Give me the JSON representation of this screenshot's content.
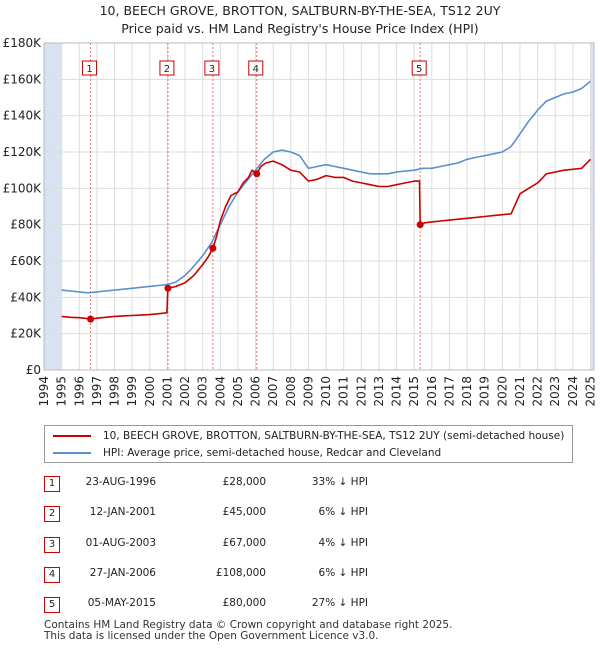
{
  "chart_data": {
    "type": "line",
    "title": "10, BEECH GROVE, BROTTON, SALTBURN-BY-THE-SEA, TS12 2UY",
    "subtitle": "Price paid vs. HM Land Registry's House Price Index (HPI)",
    "xlabel": "",
    "ylabel": "",
    "xlim": [
      1994,
      2025.2
    ],
    "ylim": [
      0,
      180000
    ],
    "yticks": [
      0,
      20000,
      40000,
      60000,
      80000,
      100000,
      120000,
      140000,
      160000,
      180000
    ],
    "ytick_labels": [
      "£0",
      "£20K",
      "£40K",
      "£60K",
      "£80K",
      "£100K",
      "£120K",
      "£140K",
      "£160K",
      "£180K"
    ],
    "xticks": [
      1994,
      1995,
      1996,
      1997,
      1998,
      1999,
      2000,
      2001,
      2002,
      2003,
      2004,
      2005,
      2006,
      2007,
      2008,
      2009,
      2010,
      2011,
      2012,
      2013,
      2014,
      2015,
      2016,
      2017,
      2018,
      2019,
      2020,
      2021,
      2022,
      2023,
      2024,
      2025
    ],
    "colors": {
      "property": "#cc0000",
      "hpi": "#5b8fd0",
      "marker_line": "#e57373",
      "future_shade": "#d8e2f0"
    },
    "series": [
      {
        "name": "10, BEECH GROVE, BROTTON, SALTBURN-BY-THE-SEA, TS12 2UY (semi-detached house)",
        "role": "property",
        "x": [
          1995.0,
          1995.5,
          1996.0,
          1996.3,
          1996.64,
          1997.0,
          1997.5,
          1998.0,
          1998.5,
          1999.0,
          1999.5,
          2000.0,
          2000.5,
          2000.97,
          2001.03,
          2001.5,
          2002.0,
          2002.5,
          2003.0,
          2003.3,
          2003.58,
          2003.8,
          2004.0,
          2004.3,
          2004.6,
          2005.0,
          2005.3,
          2005.6,
          2005.8,
          2006.07,
          2006.3,
          2006.6,
          2007.0,
          2007.5,
          2008.0,
          2008.5,
          2009.0,
          2009.5,
          2010.0,
          2010.5,
          2011.0,
          2011.5,
          2012.0,
          2012.5,
          2013.0,
          2013.5,
          2014.0,
          2014.5,
          2015.0,
          2015.3,
          2015.34,
          2015.6,
          2016.0,
          2016.5,
          2017.0,
          2017.5,
          2018.0,
          2018.5,
          2019.0,
          2019.5,
          2020.0,
          2020.5,
          2021.0,
          2021.5,
          2022.0,
          2022.5,
          2023.0,
          2023.5,
          2024.0,
          2024.5,
          2025.0
        ],
        "values": [
          29500,
          29000,
          28800,
          28500,
          28000,
          28500,
          29000,
          29500,
          29800,
          30000,
          30200,
          30500,
          31000,
          31500,
          45000,
          46000,
          48000,
          52000,
          58000,
          62000,
          67000,
          74000,
          82000,
          90000,
          96000,
          98000,
          103000,
          106000,
          110000,
          108000,
          112000,
          114000,
          115000,
          113000,
          110000,
          109000,
          104000,
          105000,
          107000,
          106000,
          106000,
          104000,
          103000,
          102000,
          101000,
          101000,
          102000,
          103000,
          104000,
          104000,
          80000,
          81000,
          81500,
          82000,
          82500,
          83000,
          83500,
          84000,
          84500,
          85000,
          85500,
          86000,
          97000,
          100000,
          103000,
          108000,
          109000,
          110000,
          110500,
          111000,
          116000
        ]
      },
      {
        "name": "HPI: Average price, semi-detached house, Redcar and Cleveland",
        "role": "hpi",
        "x": [
          1995.0,
          1995.5,
          1996.0,
          1996.5,
          1997.0,
          1997.5,
          1998.0,
          1998.5,
          1999.0,
          1999.5,
          2000.0,
          2000.5,
          2001.0,
          2001.5,
          2002.0,
          2002.5,
          2003.0,
          2003.5,
          2004.0,
          2004.5,
          2005.0,
          2005.5,
          2006.0,
          2006.5,
          2007.0,
          2007.5,
          2008.0,
          2008.5,
          2009.0,
          2009.5,
          2010.0,
          2010.5,
          2011.0,
          2011.5,
          2012.0,
          2012.5,
          2013.0,
          2013.5,
          2014.0,
          2014.5,
          2015.0,
          2015.5,
          2016.0,
          2016.5,
          2017.0,
          2017.5,
          2018.0,
          2018.5,
          2019.0,
          2019.5,
          2020.0,
          2020.5,
          2021.0,
          2021.5,
          2022.0,
          2022.5,
          2023.0,
          2023.5,
          2024.0,
          2024.5,
          2025.0
        ],
        "values": [
          44000,
          43500,
          43000,
          42500,
          43000,
          43500,
          44000,
          44500,
          45000,
          45500,
          46000,
          46500,
          47000,
          48500,
          52000,
          57000,
          63000,
          70000,
          80000,
          90000,
          98000,
          104000,
          110000,
          116000,
          120000,
          121000,
          120000,
          118000,
          111000,
          112000,
          113000,
          112000,
          111000,
          110000,
          109000,
          108000,
          108000,
          108000,
          109000,
          109500,
          110000,
          111000,
          111000,
          112000,
          113000,
          114000,
          116000,
          117000,
          118000,
          119000,
          120000,
          123000,
          130000,
          137000,
          143000,
          148000,
          150000,
          152000,
          153000,
          155000,
          159000
        ]
      }
    ],
    "sales": [
      {
        "label": "1",
        "date": "23-AUG-1996",
        "x": 1996.64,
        "price": 28000
      },
      {
        "label": "2",
        "date": "12-JAN-2001",
        "x": 2001.03,
        "price": 45000
      },
      {
        "label": "3",
        "date": "01-AUG-2003",
        "x": 2003.58,
        "price": 67000
      },
      {
        "label": "4",
        "date": "27-JAN-2006",
        "x": 2006.07,
        "price": 108000
      },
      {
        "label": "5",
        "date": "05-MAY-2015",
        "x": 2015.34,
        "price": 80000
      }
    ]
  },
  "legend": {
    "property_label": "10, BEECH GROVE, BROTTON, SALTBURN-BY-THE-SEA, TS12 2UY (semi-detached house)",
    "hpi_label": "HPI: Average price, semi-detached house, Redcar and Cleveland"
  },
  "sales_table": [
    {
      "num": "1",
      "date": "23-AUG-1996",
      "price": "£28,000",
      "hpi": "33% ↓ HPI"
    },
    {
      "num": "2",
      "date": "12-JAN-2001",
      "price": "£45,000",
      "hpi": "6% ↓ HPI"
    },
    {
      "num": "3",
      "date": "01-AUG-2003",
      "price": "£67,000",
      "hpi": "4% ↓ HPI"
    },
    {
      "num": "4",
      "date": "27-JAN-2006",
      "price": "£108,000",
      "hpi": "6% ↓ HPI"
    },
    {
      "num": "5",
      "date": "05-MAY-2015",
      "price": "£80,000",
      "hpi": "27% ↓ HPI"
    }
  ],
  "footer": {
    "line1": "Contains HM Land Registry data © Crown copyright and database right 2025.",
    "line2": "This data is licensed under the Open Government Licence v3.0."
  }
}
